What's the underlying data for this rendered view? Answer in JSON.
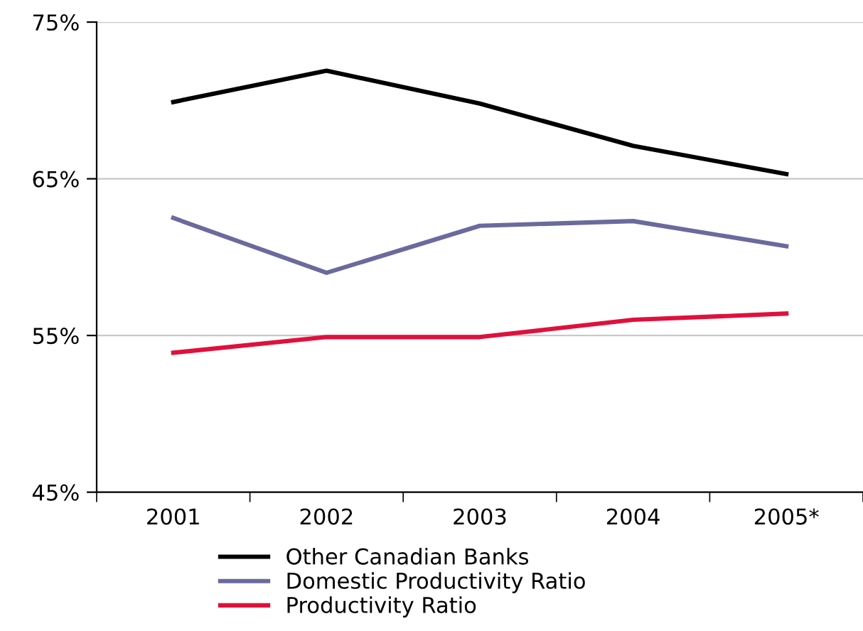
{
  "chart_data": {
    "type": "line",
    "categories": [
      "2001",
      "2002",
      "2003",
      "2004",
      "2005*"
    ],
    "series": [
      {
        "name": "Other Canadian Banks",
        "color": "#000000",
        "values": [
          69.9,
          71.9,
          69.8,
          67.1,
          65.3
        ]
      },
      {
        "name": "Domestic Productivity Ratio",
        "color": "#6a6a9e",
        "values": [
          62.5,
          59.0,
          62.0,
          62.3,
          60.7
        ]
      },
      {
        "name": "Productivity Ratio",
        "color": "#e0103c",
        "values": [
          53.9,
          54.9,
          54.9,
          56.0,
          56.4
        ]
      }
    ],
    "ylim": [
      45,
      75
    ],
    "yticks": [
      {
        "value": 45,
        "label": "45%"
      },
      {
        "value": 55,
        "label": "55%"
      },
      {
        "value": 65,
        "label": "65%"
      },
      {
        "value": 75,
        "label": "75%"
      }
    ],
    "grid": "y",
    "legend": "bottom",
    "marker": "none",
    "line_style": "solid"
  }
}
